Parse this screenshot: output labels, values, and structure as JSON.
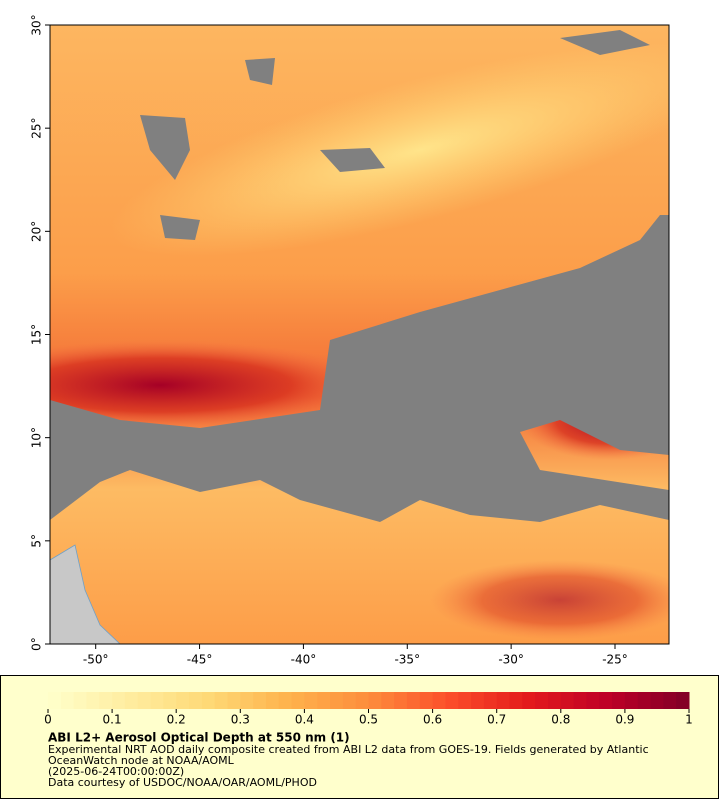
{
  "chart_data": {
    "type": "map",
    "xlim": [
      -52.2,
      -22.4
    ],
    "ylim": [
      0,
      30
    ],
    "xticks": [
      {
        "value": -50,
        "label": "-50°"
      },
      {
        "value": -45,
        "label": "-45°"
      },
      {
        "value": -40,
        "label": "-40°"
      },
      {
        "value": -35,
        "label": "-35°"
      },
      {
        "value": -30,
        "label": "-30°"
      },
      {
        "value": -25,
        "label": "-25°"
      }
    ],
    "yticks": [
      {
        "value": 0,
        "label": "0°"
      },
      {
        "value": 5,
        "label": "5°"
      },
      {
        "value": 10,
        "label": "10°"
      },
      {
        "value": 15,
        "label": "15°"
      },
      {
        "value": 20,
        "label": "20°"
      },
      {
        "value": 25,
        "label": "25°"
      },
      {
        "value": 30,
        "label": "30°"
      }
    ],
    "colorbar": {
      "lim": [
        0,
        1
      ],
      "ticks": [
        0,
        0.1,
        0.2,
        0.3,
        0.4,
        0.5,
        0.6,
        0.7,
        0.8,
        0.9,
        1
      ],
      "colorscale": [
        "#ffffcc",
        "#ffeda0",
        "#fed976",
        "#feb24c",
        "#fd8d3c",
        "#fc4e2a",
        "#e31a1c",
        "#bd0026",
        "#800026"
      ]
    },
    "title": "ABI L2+ Aerosol Optical Depth at 550 nm (1)",
    "notes": [
      "Experimental NRT AOD daily composite created from ABI L2 data from GOES-19. Fields generated by Atlantic",
      "OceanWatch node at NOAA/AOML",
      "(2025-06-24T00:00:00Z)",
      "Data courtesy of USDOC/NOAA/OAR/AOML/PHOD"
    ]
  }
}
